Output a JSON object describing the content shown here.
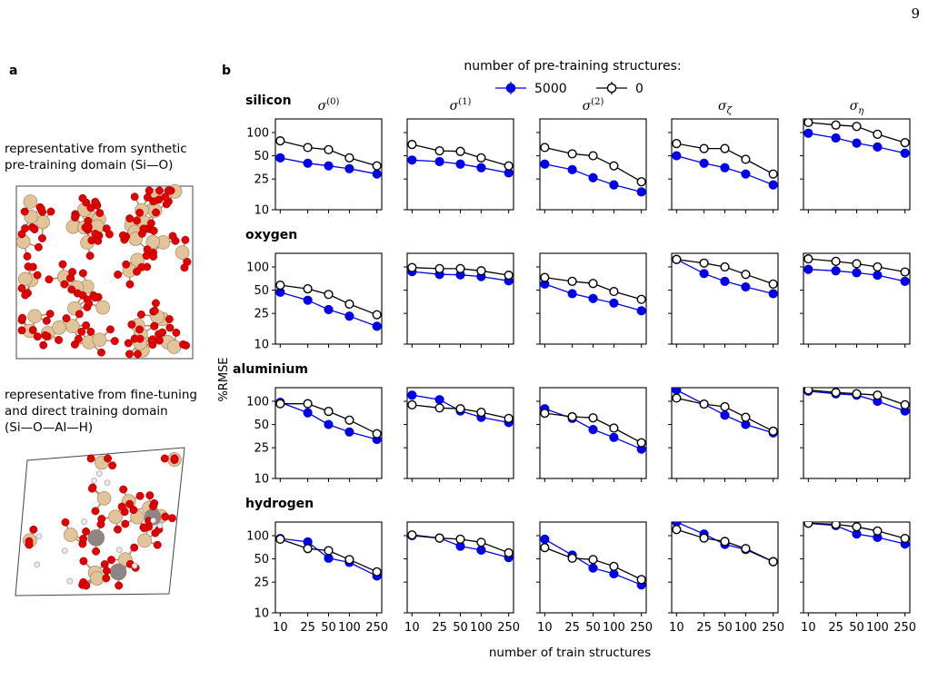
{
  "page_number": "9",
  "panel_a": {
    "label": "a",
    "caption_top": [
      "representative from synthetic",
      "pre-training domain (Si—O)"
    ],
    "caption_bottom": [
      "representative from fine-tuning",
      "and direct training domain",
      "(Si—O—Al—H)"
    ]
  },
  "panel_b": {
    "label": "b",
    "legend_title": "number of pre-training structures:",
    "xlabel": "number of train structures",
    "ylabel": "%RMSE"
  },
  "colors": {
    "pretrained": "#0000e8",
    "scratch_edge": "#000000",
    "scratch_face": "#ffffff",
    "silicon": "#e2c49a",
    "oxygen": "#e00000",
    "aluminium": "#8f8486",
    "hydrogen": "#e8e8ee"
  },
  "chart_data": {
    "type": "line",
    "y_scale": "log",
    "x_scale": "log",
    "ylim": [
      10,
      150
    ],
    "yticks": [
      10,
      25,
      50,
      100
    ],
    "ytick_labels": [
      "10",
      "25",
      "50",
      "100"
    ],
    "xticks": [
      10,
      25,
      50,
      100,
      250
    ],
    "xtick_labels": [
      "10",
      "25",
      "50",
      "100",
      "250"
    ],
    "x": [
      10,
      25,
      50,
      100,
      250
    ],
    "legend": [
      {
        "key": "pretrained",
        "label": "5000"
      },
      {
        "key": "scratch",
        "label": "0"
      }
    ],
    "columns": [
      "σ(0)",
      "σ(1)",
      "σ(2)",
      "σζ",
      "ση"
    ],
    "rows": [
      {
        "element": "silicon",
        "panels": [
          {
            "pretrained": [
              47,
              40,
              37,
              34,
              29
            ],
            "scratch": [
              78,
              64,
              60,
              47,
              37
            ]
          },
          {
            "pretrained": [
              44,
              42,
              39,
              35,
              30
            ],
            "scratch": [
              70,
              58,
              57,
              47,
              37
            ]
          },
          {
            "pretrained": [
              39,
              33,
              26,
              21,
              17
            ],
            "scratch": [
              64,
              53,
              50,
              37,
              23
            ]
          },
          {
            "pretrained": [
              50,
              40,
              35,
              29,
              21
            ],
            "scratch": [
              72,
              62,
              62,
              45,
              29
            ]
          },
          {
            "pretrained": [
              98,
              85,
              73,
              65,
              54
            ],
            "scratch": [
              135,
              125,
              120,
              95,
              74
            ]
          }
        ]
      },
      {
        "element": "oxygen",
        "panels": [
          {
            "pretrained": [
              47,
              37,
              28,
              23,
              17
            ],
            "scratch": [
              58,
              52,
              44,
              33,
              24
            ]
          },
          {
            "pretrained": [
              87,
              80,
              79,
              75,
              66
            ],
            "scratch": [
              98,
              95,
              95,
              89,
              78
            ]
          },
          {
            "pretrained": [
              60,
              45,
              39,
              34,
              27
            ],
            "scratch": [
              73,
              65,
              61,
              48,
              38
            ]
          },
          {
            "pretrained": [
              125,
              82,
              65,
              55,
              45
            ],
            "scratch": [
              125,
              112,
              100,
              80,
              60
            ]
          },
          {
            "pretrained": [
              93,
              89,
              84,
              78,
              65
            ],
            "scratch": [
              127,
              118,
              110,
              100,
              86
            ]
          }
        ]
      },
      {
        "element": "aluminium",
        "panels": [
          {
            "pretrained": [
              97,
              71,
              50,
              40,
              32
            ],
            "scratch": [
              93,
              93,
              74,
              57,
              38
            ]
          },
          {
            "pretrained": [
              120,
              105,
              75,
              62,
              53
            ],
            "scratch": [
              90,
              82,
              80,
              72,
              60
            ]
          },
          {
            "pretrained": [
              80,
              60,
              43,
              34,
              24
            ],
            "scratch": [
              70,
              63,
              61,
              45,
              29
            ]
          },
          {
            "pretrained": [
              140,
              92,
              66,
              50,
              39
            ],
            "scratch": [
              110,
              92,
              85,
              62,
              41
            ]
          },
          {
            "pretrained": [
              135,
              125,
              120,
              100,
              75
            ],
            "scratch": [
              140,
              130,
              125,
              120,
              90
            ]
          }
        ]
      },
      {
        "element": "hydrogen",
        "panels": [
          {
            "pretrained": [
              92,
              83,
              51,
              45,
              30
            ],
            "scratch": [
              90,
              68,
              64,
              49,
              34
            ]
          },
          {
            "pretrained": [
              100,
              93,
              73,
              65,
              52
            ],
            "scratch": [
              102,
              93,
              90,
              82,
              60
            ]
          },
          {
            "pretrained": [
              90,
              56,
              38,
              32,
              23
            ],
            "scratch": [
              70,
              51,
              49,
              40,
              27
            ]
          },
          {
            "pretrained": [
              160,
              105,
              77,
              66,
              46
            ],
            "scratch": [
              120,
              93,
              84,
              68,
              46
            ]
          },
          {
            "pretrained": [
              145,
              135,
              105,
              95,
              78
            ],
            "scratch": [
              145,
              140,
              130,
              115,
              92
            ]
          }
        ]
      }
    ]
  }
}
